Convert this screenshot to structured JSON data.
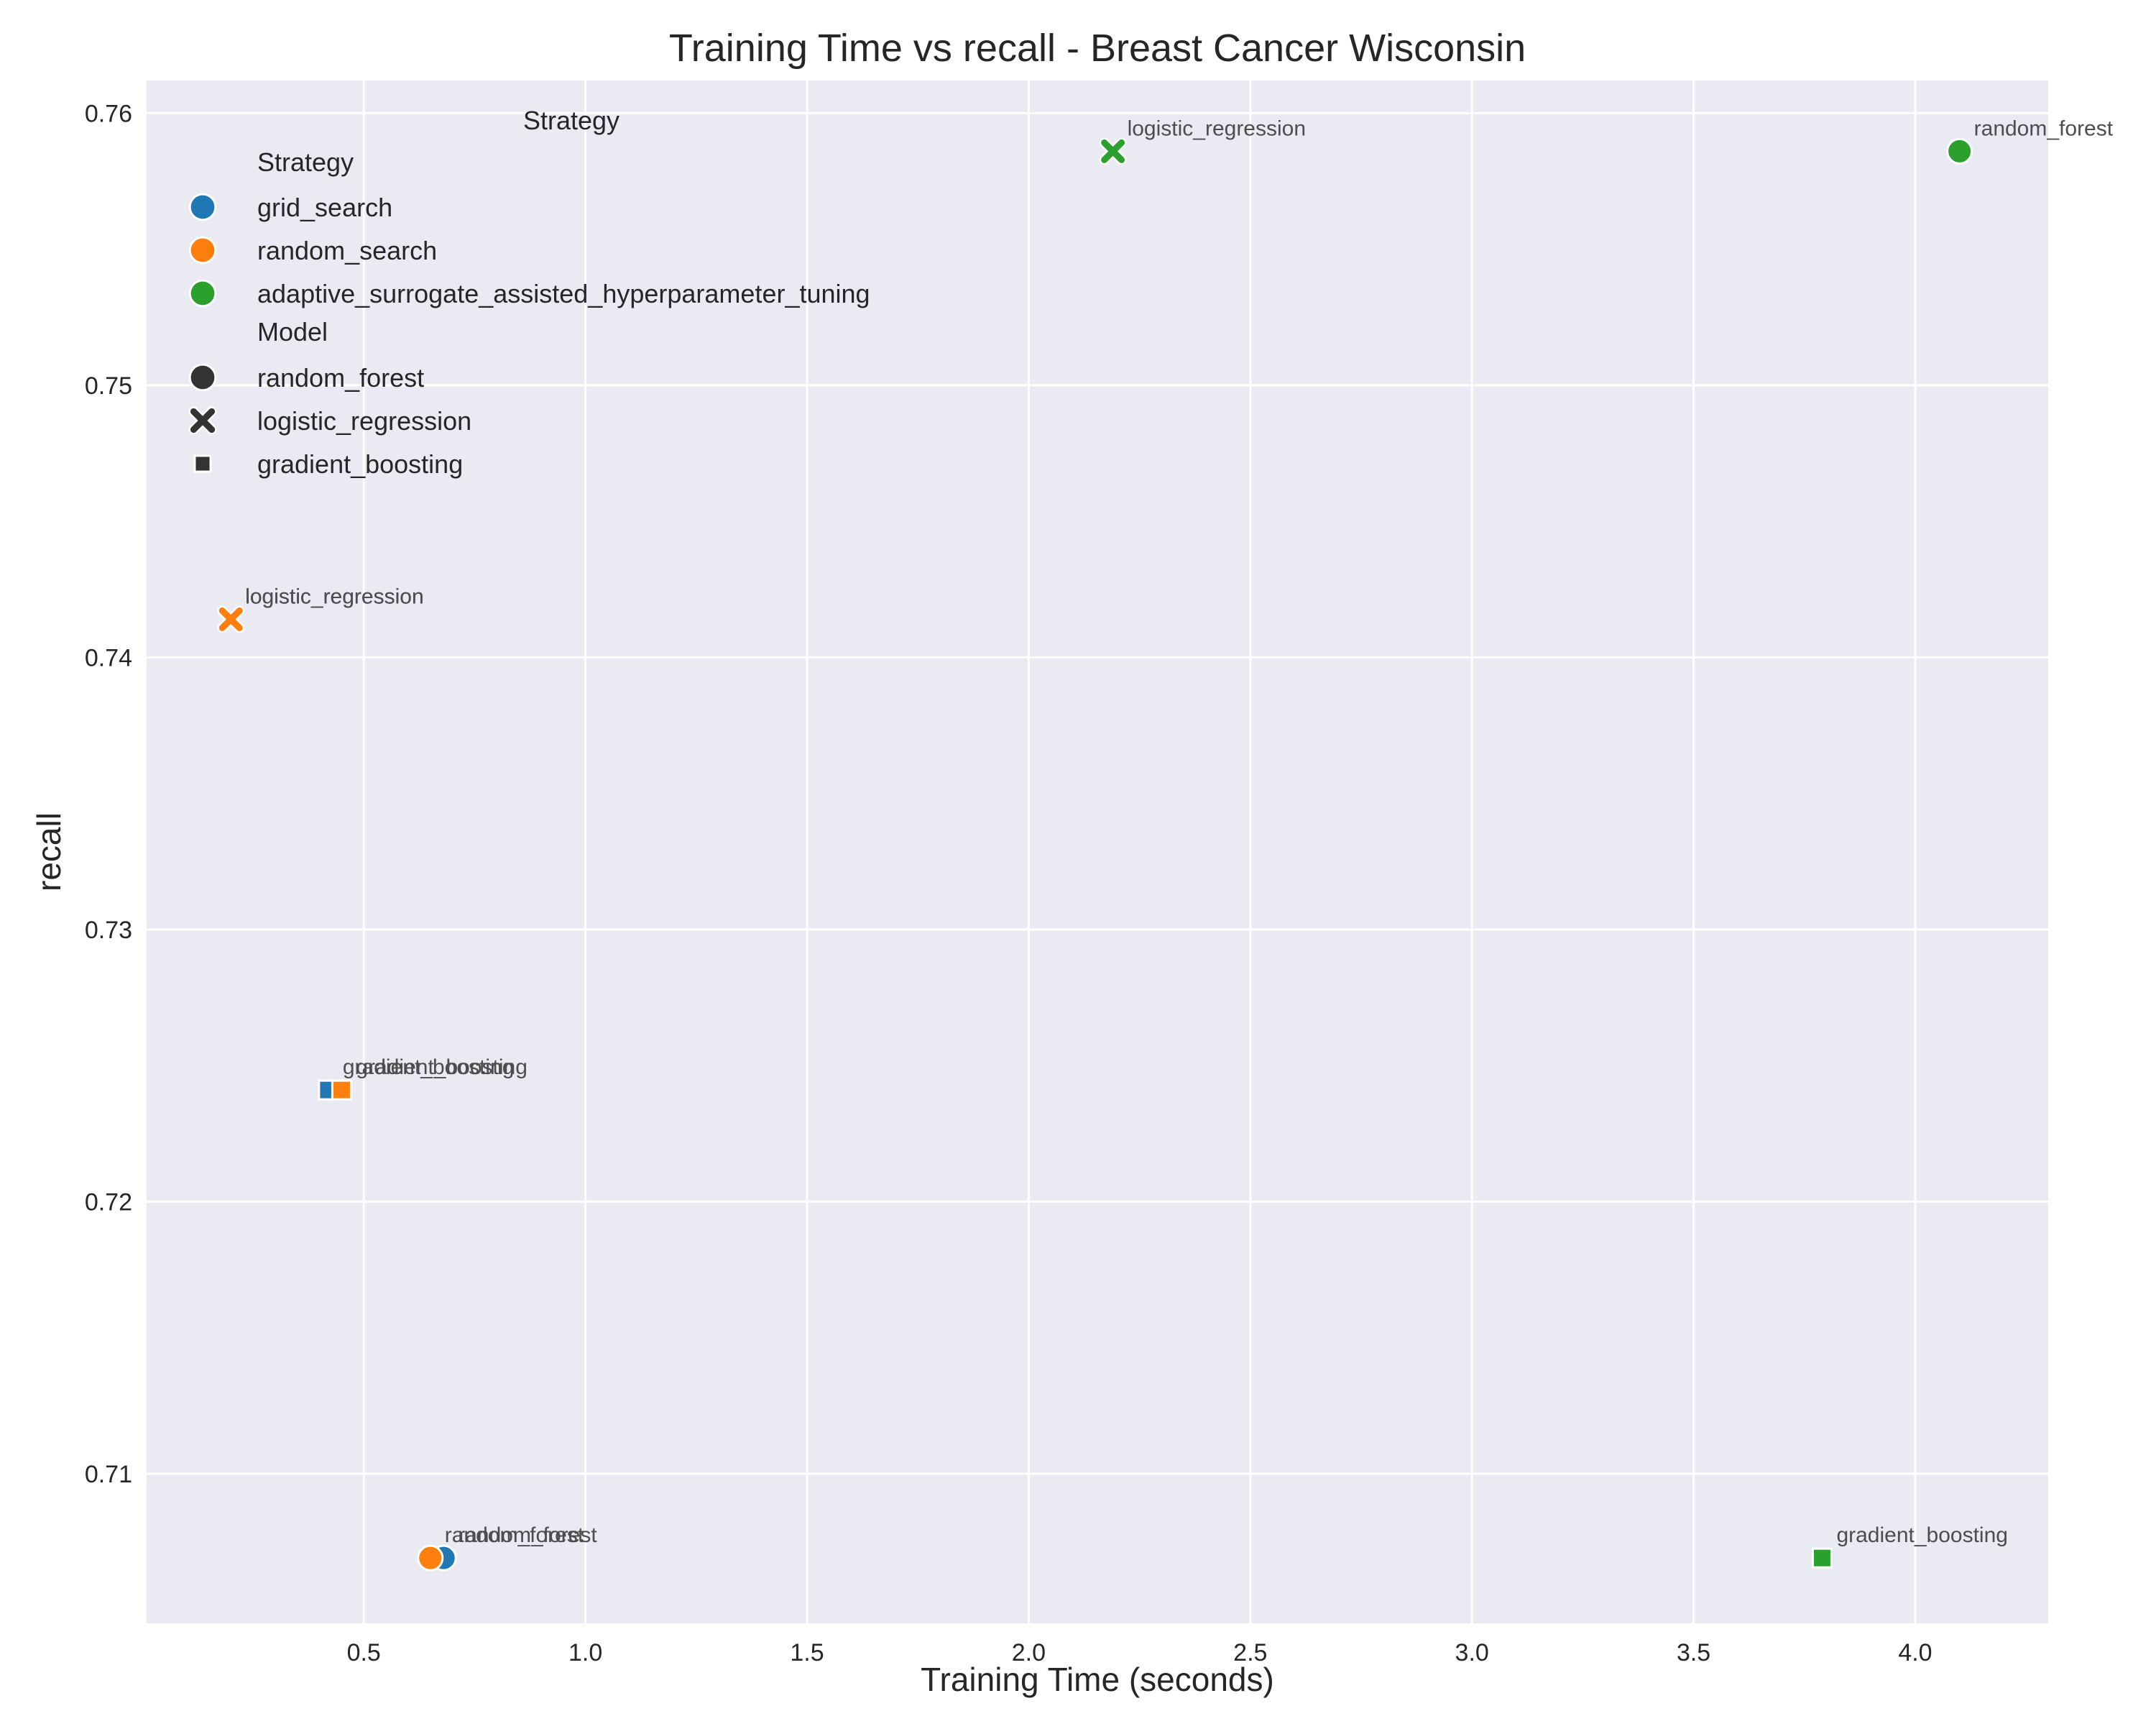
{
  "chart_data": {
    "type": "scatter",
    "title": "Training Time vs recall - Breast Cancer Wisconsin",
    "xlabel": "Training Time (seconds)",
    "ylabel": "recall",
    "xlim": [
      0.01,
      4.3
    ],
    "ylim": [
      0.7045,
      0.7612
    ],
    "xticks": [
      "0.5",
      "1.0",
      "1.5",
      "2.0",
      "2.5",
      "3.0",
      "3.5",
      "4.0"
    ],
    "yticks": [
      "0.71",
      "0.72",
      "0.73",
      "0.74",
      "0.75",
      "0.76"
    ],
    "grid": true,
    "background": "#eaeaf2",
    "legend": {
      "placement": "top-left",
      "title": "Strategy",
      "strategy_header": "Strategy",
      "model_header": "Model",
      "strategies": [
        {
          "label": "grid_search",
          "color": "#1f77b4"
        },
        {
          "label": "random_search",
          "color": "#ff7f0e"
        },
        {
          "label": "adaptive_surrogate_assisted_hyperparameter_tuning",
          "color": "#2ca02c"
        }
      ],
      "models": [
        {
          "label": "random_forest",
          "marker": "circle"
        },
        {
          "label": "logistic_regression",
          "marker": "x"
        },
        {
          "label": "gradient_boosting",
          "marker": "square"
        }
      ]
    },
    "points": [
      {
        "strategy": "grid_search",
        "model": "random_forest",
        "x": 0.68,
        "y": 0.7069,
        "label": "random_forest"
      },
      {
        "strategy": "grid_search",
        "model": "logistic_regression",
        "x": 0.2,
        "y": 0.7414,
        "label": "logistic_regression"
      },
      {
        "strategy": "grid_search",
        "model": "gradient_boosting",
        "x": 0.42,
        "y": 0.7241,
        "label": "gradient_boosting"
      },
      {
        "strategy": "random_search",
        "model": "random_forest",
        "x": 0.65,
        "y": 0.7069,
        "label": "random_forest"
      },
      {
        "strategy": "random_search",
        "model": "logistic_regression",
        "x": 0.2,
        "y": 0.7414,
        "label": "logistic_regression"
      },
      {
        "strategy": "random_search",
        "model": "gradient_boosting",
        "x": 0.45,
        "y": 0.7241,
        "label": "gradient_boosting"
      },
      {
        "strategy": "adaptive_surrogate_assisted_hyperparameter_tuning",
        "model": "random_forest",
        "x": 4.1,
        "y": 0.7586,
        "label": "random_forest"
      },
      {
        "strategy": "adaptive_surrogate_assisted_hyperparameter_tuning",
        "model": "logistic_regression",
        "x": 2.19,
        "y": 0.7586,
        "label": "logistic_regression"
      },
      {
        "strategy": "adaptive_surrogate_assisted_hyperparameter_tuning",
        "model": "gradient_boosting",
        "x": 3.79,
        "y": 0.7069,
        "label": "gradient_boosting"
      }
    ]
  }
}
